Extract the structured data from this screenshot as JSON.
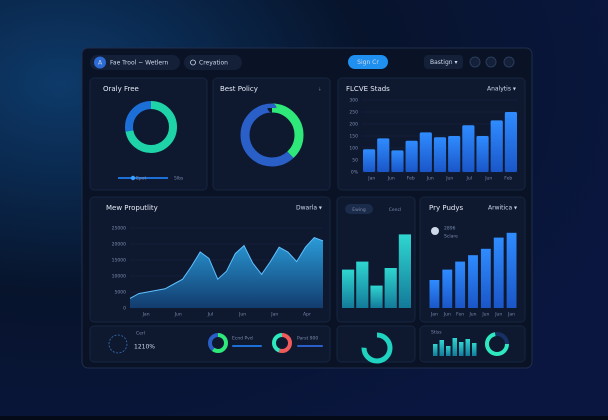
{
  "header": {
    "logo": "A",
    "title": "Fae Trool ~ Wetlern",
    "search": "Creyation",
    "button": "Sign Cr",
    "menu": "Bastign ▾"
  },
  "orally": {
    "title": "Oraly Free",
    "donut": [
      72,
      28
    ],
    "slider_left": "Epot",
    "slider_right": "5lbs"
  },
  "policy": {
    "title": "Best Policy",
    "menu": "⇣",
    "donut": [
      38,
      62
    ]
  },
  "stats": {
    "title": "FLCVE Stads",
    "menu": "Analytis ▾",
    "ylim": [
      0,
      300
    ],
    "yticks": [
      {
        "value": 0,
        "label": "0%"
      },
      50,
      100,
      150,
      200,
      250,
      300
    ],
    "x_labels": [
      "Jan",
      "Jun",
      "Feb",
      "Jun",
      "Jun",
      "Jul",
      "Jun",
      "Feb"
    ],
    "values": [
      95,
      140,
      90,
      130,
      165,
      145,
      150,
      195,
      150,
      215,
      250
    ]
  },
  "property": {
    "title": "Mew Proputlity",
    "menu": "Dwarla ▾",
    "ylim": [
      0,
      25000
    ],
    "yticks": [
      0,
      5000,
      10000,
      15000,
      20000,
      25000
    ],
    "x_labels": [
      "Jan",
      "Jun",
      "Jul",
      "Jun",
      "Jan",
      "Apr"
    ],
    "values": [
      3000,
      4500,
      5000,
      5500,
      6000,
      7500,
      9000,
      13000,
      17500,
      15500,
      9000,
      11500,
      17000,
      19500,
      14000,
      10500,
      14500,
      19000,
      17500,
      14500,
      19000,
      22000,
      21000
    ]
  },
  "ewing": {
    "tabs": [
      "Ewing",
      "Cencl"
    ],
    "ylim": [
      0,
      100
    ],
    "values": [
      48,
      58,
      28,
      50,
      92
    ]
  },
  "pry": {
    "title": "Pry Pudys",
    "menu": "Arwitica ▾",
    "legend": [
      "2896",
      "Sclare"
    ],
    "ylim": [
      0,
      100
    ],
    "x_labels": [
      "Jan",
      "Jun",
      "Fen",
      "Jun",
      "Jun",
      "Jun",
      "Jan"
    ],
    "values": [
      35,
      48,
      58,
      66,
      74,
      88,
      94
    ]
  },
  "footer": {
    "kpi_label": "Cerl",
    "kpi_value": "1210%",
    "donut_a": {
      "label": "Ecnd Pvd",
      "values": [
        60,
        40
      ]
    },
    "donut_b": {
      "label": "Parst 900",
      "values": [
        55,
        45
      ]
    },
    "donut_c": [
      75,
      25
    ],
    "mini": {
      "label": "Stiss",
      "values": [
        60,
        80,
        50,
        90,
        70,
        85,
        65
      ]
    }
  }
}
